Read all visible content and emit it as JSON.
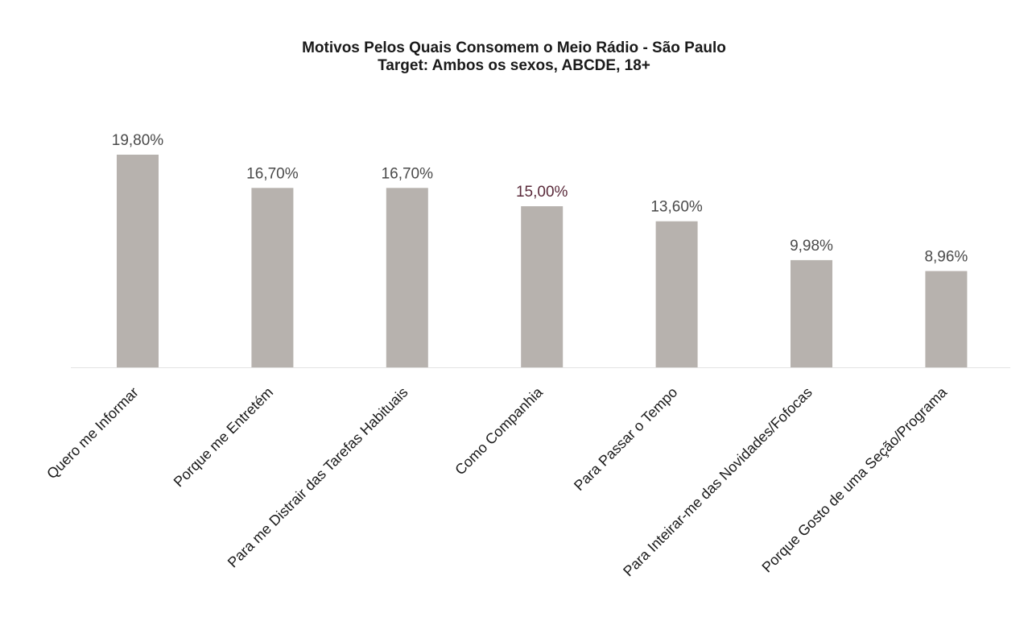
{
  "chart_data": {
    "type": "bar",
    "title": "Motivos Pelos Quais Consomem o Meio Rádio - São Paulo",
    "subtitle": "Target: Ambos os sexos, ABCDE, 18+",
    "categories": [
      "Quero me Informar",
      "Porque me Entretém",
      "Para me Distrair das Tarefas Habituais",
      "Como Companhia",
      "Para Passar o Tempo",
      "Para Inteirar-me das Novidades/Fofocas",
      "Porque Gosto de uma Seção/Programa"
    ],
    "values": [
      19.8,
      16.7,
      16.7,
      15.0,
      13.6,
      9.98,
      8.96
    ],
    "data_labels": [
      "19,80%",
      "16,70%",
      "16,70%",
      "15,00%",
      "13,60%",
      "9,98%",
      "8,96%"
    ],
    "xlabel": "",
    "ylabel": "",
    "ylim": [
      0,
      20
    ],
    "grid": false,
    "legend": "none",
    "colors": {
      "bar": "#b7b2ae",
      "label": "#4a4a4a",
      "highlight_label": "#5a2a3a",
      "baseline": "#e3e3e3"
    }
  }
}
